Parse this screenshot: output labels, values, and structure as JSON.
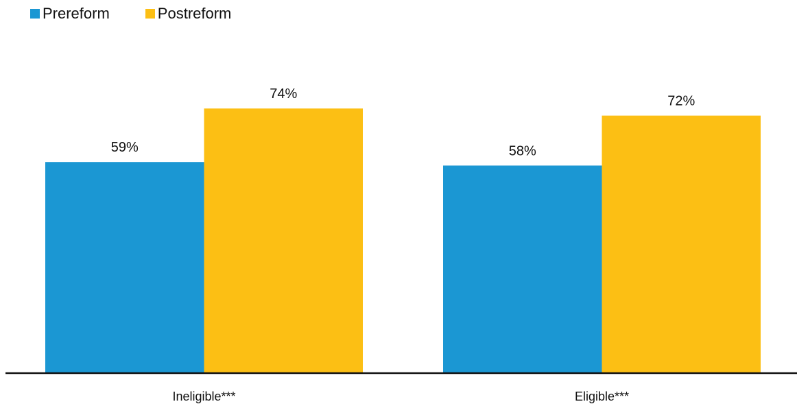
{
  "chart_data": {
    "type": "bar",
    "categories": [
      "Ineligible***",
      "Eligible***"
    ],
    "series": [
      {
        "name": "Prereform",
        "values": [
          59,
          58
        ],
        "color": "#1b97d3"
      },
      {
        "name": "Postreform",
        "values": [
          74,
          72
        ],
        "color": "#fcbf14"
      }
    ],
    "value_suffix": "%",
    "ylim": [
      0,
      100
    ],
    "grid": false,
    "legend_position": "top-left"
  }
}
